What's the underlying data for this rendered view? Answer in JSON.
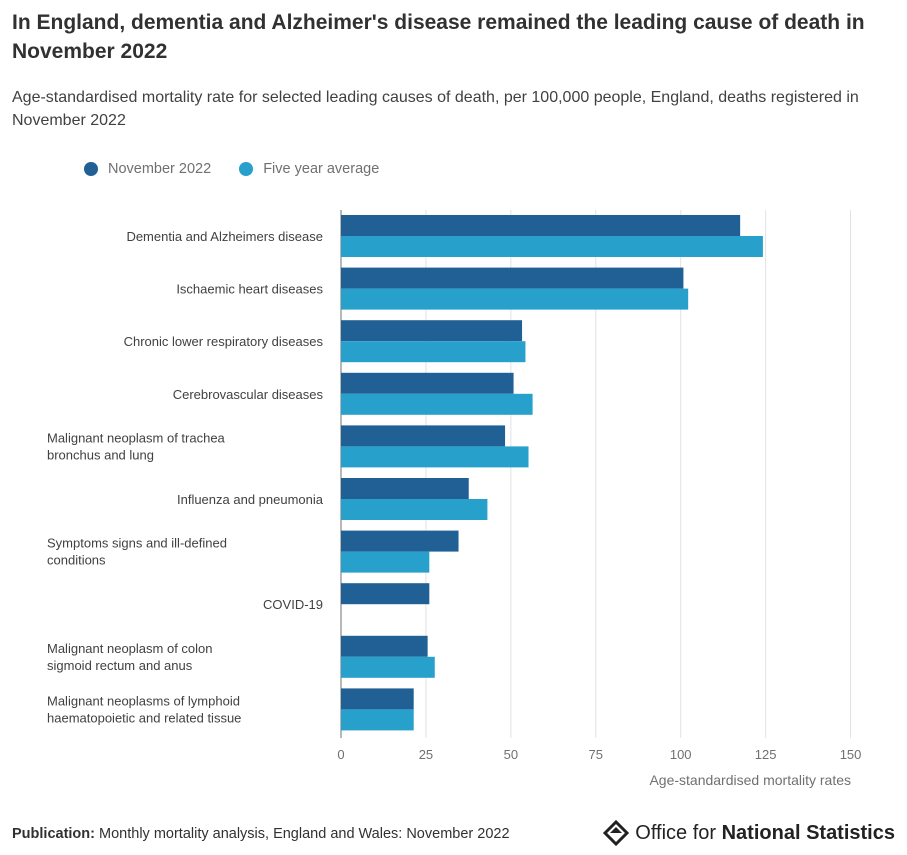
{
  "header": {
    "title": "In England, dementia and Alzheimer's disease remained the leading cause of death in November 2022",
    "subtitle": "Age-standardised mortality rate for selected leading causes of death, per 100,000 people, England, deaths registered in November 2022"
  },
  "colors": {
    "november_2022": "#206095",
    "five_year_average": "#27a0cc",
    "gridline": "#e2e2e3",
    "axis": "#707071"
  },
  "chart_data": {
    "type": "bar",
    "orientation": "horizontal",
    "categories": [
      "Dementia and Alzheimers disease",
      "Ischaemic heart diseases",
      "Chronic lower respiratory diseases",
      "Cerebrovascular diseases",
      "Malignant neoplasm of trachea bronchus and lung",
      "Influenza and pneumonia",
      "Symptoms signs and ill-defined conditions",
      "COVID-19",
      "Malignant neoplasm of colon sigmoid rectum and anus",
      "Malignant neoplasms of lymphoid haematopoietic and related tissue"
    ],
    "series": [
      {
        "name": "November 2022",
        "color": "#206095",
        "values": [
          117.5,
          100.8,
          53.3,
          50.8,
          48.3,
          37.6,
          34.6,
          26.0,
          25.5,
          21.4
        ]
      },
      {
        "name": "Five year average",
        "color": "#27a0cc",
        "values": [
          124.2,
          102.2,
          54.3,
          56.4,
          55.2,
          43.1,
          26.0,
          null,
          27.6,
          21.4
        ]
      }
    ],
    "xlabel": "Age-standardised mortality rates",
    "ylabel": "",
    "xlim": [
      0,
      150
    ],
    "xticks": [
      0,
      25,
      50,
      75,
      100,
      125,
      150
    ],
    "grid": true,
    "legend_position": "top-left"
  },
  "footer": {
    "publication_label": "Publication:",
    "publication_text": "Monthly mortality analysis, England and Wales: November 2022",
    "logo_text_regular": "Office for",
    "logo_text_bold": "National Statistics"
  }
}
